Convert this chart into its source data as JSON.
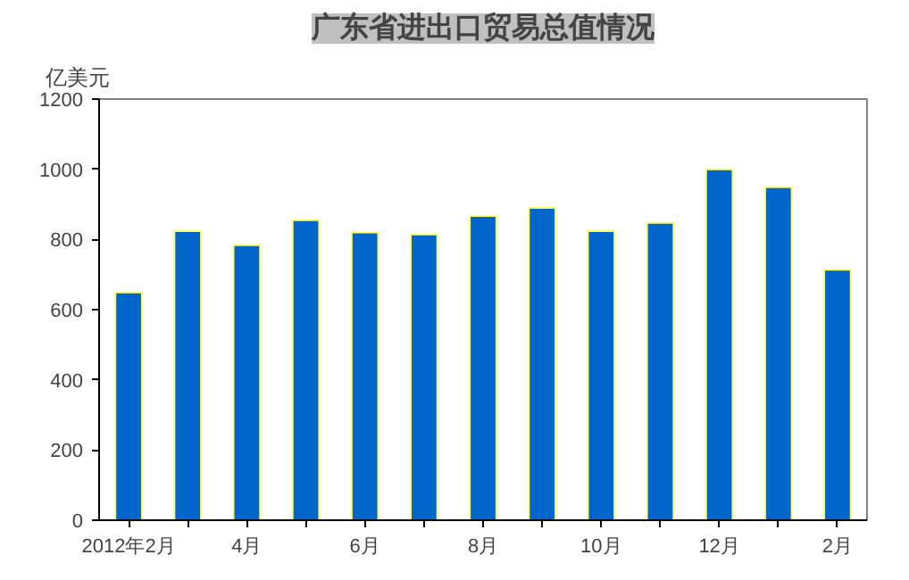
{
  "chart_data": {
    "type": "bar",
    "title": "广东省进出口贸易总值情况",
    "ylabel": "亿美元",
    "categories": [
      "2012年2月",
      null,
      "4月",
      null,
      "6月",
      null,
      "8月",
      null,
      "10月",
      null,
      "12月",
      null,
      "2月"
    ],
    "values": [
      649,
      824,
      784,
      855,
      820,
      814,
      867,
      890,
      824,
      847,
      1000,
      949,
      714
    ],
    "color": "#0066cc",
    "ylim": [
      0,
      1200
    ],
    "yticks": [
      0,
      200,
      400,
      600,
      800,
      1000,
      1200
    ],
    "grid": false
  }
}
